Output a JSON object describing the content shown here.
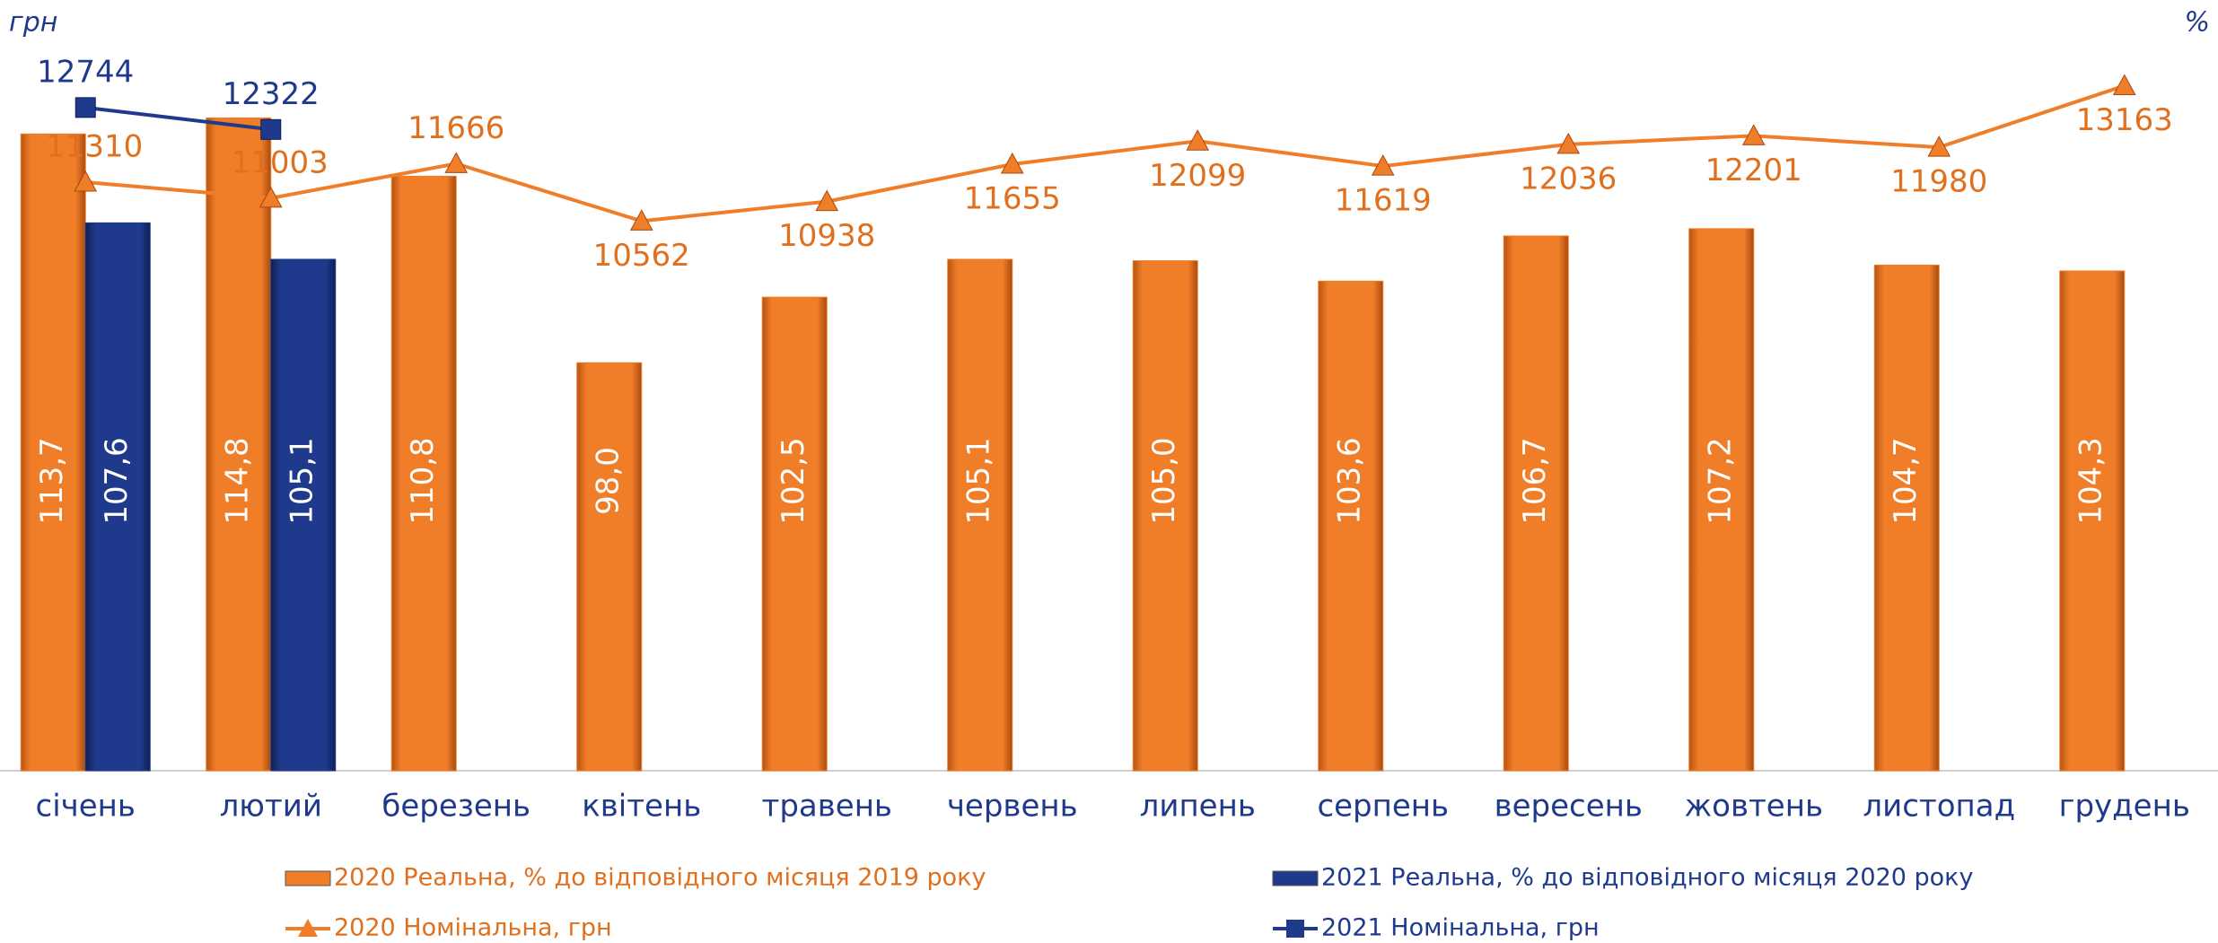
{
  "chart_data": {
    "type": "bar",
    "y_label": "грн",
    "y2_label": "%",
    "categories": [
      "січень",
      "лютий",
      "березень",
      "квітень",
      "травень",
      "червень",
      "липень",
      "серпень",
      "вересень",
      "жовтень",
      "листопад",
      "грудень"
    ],
    "ylim": [
      0,
      14000
    ],
    "y2lim": [
      70,
      120
    ],
    "grid": false,
    "series": [
      {
        "name": "2020 Реальна, % до відповідного місяця 2019 року",
        "type": "bar",
        "axis": "y2",
        "color": "#f07d28",
        "values": [
          113.7,
          114.8,
          110.8,
          98.0,
          102.5,
          105.1,
          105.0,
          103.6,
          106.7,
          107.2,
          104.7,
          104.3
        ],
        "value_labels": [
          "113,7",
          "114,8",
          "110,8",
          "98,0",
          "102,5",
          "105,1",
          "105,0",
          "103,6",
          "106,7",
          "107,2",
          "104,7",
          "104,3"
        ]
      },
      {
        "name": "2021 Реальна, % до відповідного місяця 2020 року",
        "type": "bar",
        "axis": "y2",
        "color": "#1f3a8c",
        "values": [
          107.6,
          105.1,
          null,
          null,
          null,
          null,
          null,
          null,
          null,
          null,
          null,
          null
        ],
        "value_labels": [
          "107,6",
          "105,1",
          null,
          null,
          null,
          null,
          null,
          null,
          null,
          null,
          null,
          null
        ]
      },
      {
        "name": "2020 Номінальна, грн",
        "type": "line",
        "color": "#f07d28",
        "values": [
          11310,
          11003,
          11666,
          10562,
          10938,
          11655,
          12099,
          11619,
          12036,
          12201,
          11980,
          13163
        ]
      },
      {
        "name": "2021 Номінальна, грн",
        "type": "line",
        "color": "#1f3a8c",
        "values": [
          12744,
          12322,
          null,
          null,
          null,
          null,
          null,
          null,
          null,
          null,
          null,
          null
        ]
      }
    ]
  }
}
